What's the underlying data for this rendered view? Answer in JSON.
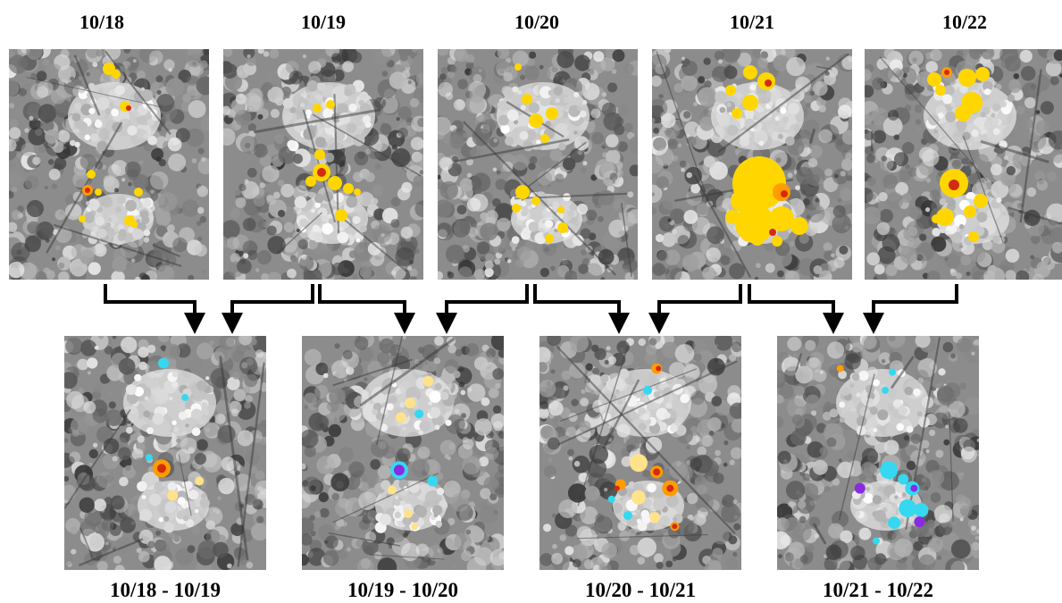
{
  "top_row": [
    {
      "date": "10/18"
    },
    {
      "date": "10/19"
    },
    {
      "date": "10/20"
    },
    {
      "date": "10/21"
    },
    {
      "date": "10/22"
    }
  ],
  "bottom_row": [
    {
      "label": "10/18 - 10/19"
    },
    {
      "label": "10/19 - 10/20"
    },
    {
      "label": "10/20 - 10/21"
    },
    {
      "label": "10/21 - 10/22"
    }
  ],
  "colors": {
    "background": "#ffffff",
    "text": "#000000",
    "arrow": "#000000",
    "increase_low": "#ffd600",
    "increase_high": "#d42a10",
    "decrease_low": "#35d8f0",
    "decrease_high": "#8a2be2"
  }
}
